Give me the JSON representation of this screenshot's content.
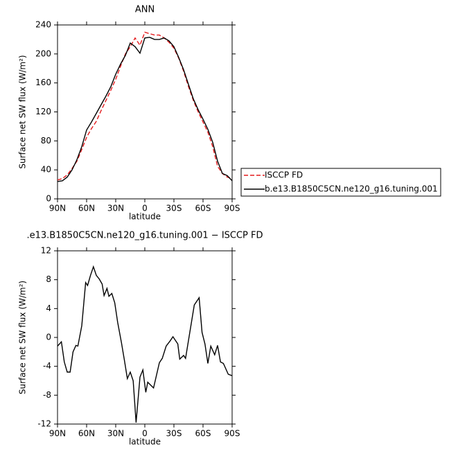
{
  "chart_data": [
    {
      "type": "line",
      "title": "ANN",
      "xlabel": "latitude",
      "ylabel": "Surface net SW flux (W/m²)",
      "x": [
        90,
        85,
        80,
        75,
        70,
        65,
        60,
        55,
        50,
        45,
        40,
        35,
        30,
        25,
        20,
        15,
        10,
        5,
        0,
        -5,
        -10,
        -15,
        -20,
        -25,
        -30,
        -35,
        -40,
        -45,
        -50,
        -55,
        -60,
        -65,
        -70,
        -75,
        -80,
        -85,
        -90
      ],
      "series": [
        {
          "name": "ISCCP FD",
          "color": "#e41a1c",
          "dash": true,
          "values": [
            26,
            28,
            33,
            42,
            52,
            68,
            85,
            97,
            107,
            122,
            136,
            150,
            165,
            183,
            200,
            210,
            222,
            212,
            230,
            228,
            226,
            226,
            222,
            216,
            208,
            194,
            176,
            155,
            136,
            120,
            106,
            92,
            72,
            45,
            35,
            30,
            28
          ]
        },
        {
          "name": "b.e13.B1850C5CN.ne120_g16.tuning.001",
          "color": "#000000",
          "dash": false,
          "values": [
            24,
            25,
            30,
            40,
            54,
            72,
            95,
            106,
            118,
            130,
            142,
            155,
            172,
            186,
            198,
            215,
            210,
            201,
            222,
            223,
            220,
            220,
            222,
            218,
            210,
            195,
            178,
            158,
            138,
            123,
            110,
            96,
            78,
            52,
            35,
            32,
            25
          ]
        }
      ],
      "xlim": [
        90,
        -90
      ],
      "xticks": [
        {
          "value": 90,
          "label": "90N"
        },
        {
          "value": 60,
          "label": "60N"
        },
        {
          "value": 30,
          "label": "30N"
        },
        0,
        {
          "value": -30,
          "label": "30S"
        },
        {
          "value": -60,
          "label": "60S"
        },
        {
          "value": -90,
          "label": "90S"
        }
      ],
      "ylim": [
        0,
        240
      ],
      "yticks": [
        0,
        40,
        80,
        120,
        160,
        200,
        240
      ],
      "legend": "outside-right"
    },
    {
      "type": "line",
      "title": ".e13.B1850C5CN.ne120_g16.tuning.001 − ISCCP FD",
      "xlabel": "latitude",
      "ylabel": "Surface net SW flux (W/m²)",
      "x": [
        90,
        86,
        83,
        80,
        77,
        74,
        71,
        69,
        65,
        61,
        59,
        56,
        53,
        50,
        47,
        44,
        42,
        39,
        37,
        34,
        31,
        28,
        24,
        21,
        18,
        15,
        12,
        9,
        5,
        2,
        -1,
        -3,
        -6,
        -9,
        -15,
        -18,
        -22,
        -26,
        -29,
        -31,
        -34,
        -36,
        -40,
        -42,
        -51,
        -56,
        -59,
        -62,
        -65,
        -68,
        -72,
        -75,
        -78,
        -81,
        -86,
        -90
      ],
      "values": [
        -1.2,
        -0.6,
        -3.4,
        -4.8,
        -4.8,
        -2.0,
        -1.1,
        -1.2,
        1.6,
        7.6,
        7.2,
        8.6,
        9.8,
        8.6,
        8.1,
        7.4,
        5.8,
        6.8,
        5.7,
        6.1,
        4.8,
        2.1,
        -0.8,
        -3.2,
        -5.7,
        -4.8,
        -6.0,
        -11.8,
        -5.5,
        -4.5,
        -7.6,
        -6.2,
        -6.6,
        -7.0,
        -3.5,
        -2.9,
        -1.2,
        -0.5,
        0.1,
        -0.3,
        -0.9,
        -3.0,
        -2.5,
        -2.9,
        4.5,
        5.5,
        0.7,
        -0.9,
        -3.6,
        -1.2,
        -2.4,
        -1.1,
        -3.4,
        -3.6,
        -5.1,
        -5.3
      ],
      "color": "#000000",
      "xlim": [
        90,
        -90
      ],
      "xticks": [
        {
          "value": 90,
          "label": "90N"
        },
        {
          "value": 60,
          "label": "60N"
        },
        {
          "value": 30,
          "label": "30N"
        },
        0,
        {
          "value": -30,
          "label": "30S"
        },
        {
          "value": -60,
          "label": "60S"
        },
        {
          "value": -90,
          "label": "90S"
        }
      ],
      "ylim": [
        -12,
        12
      ],
      "yticks": [
        -12,
        -8,
        -4,
        0,
        4,
        8,
        12
      ]
    }
  ]
}
